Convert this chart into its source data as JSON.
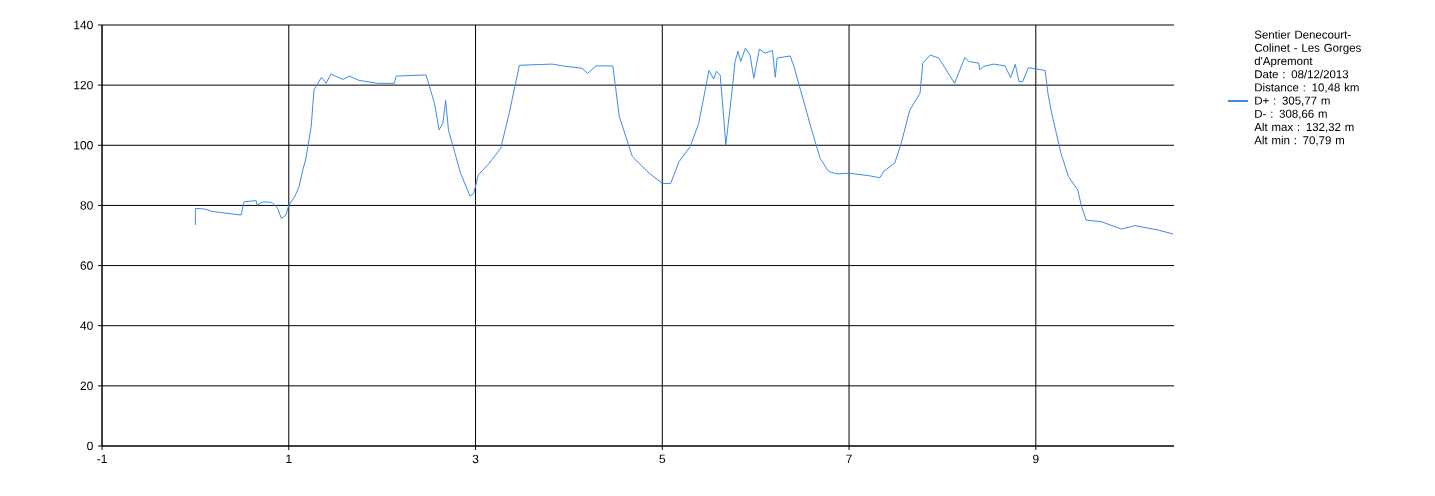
{
  "chart_data": {
    "type": "line",
    "xlim": [
      -1,
      10.48
    ],
    "ylim": [
      0,
      140
    ],
    "xticks": [
      -1,
      1,
      3,
      5,
      7,
      9
    ],
    "yticks": [
      0,
      20,
      40,
      60,
      80,
      100,
      120,
      140
    ],
    "grid": true,
    "legend": "right",
    "marker": "none",
    "line_style": "solid",
    "annotations": [
      "Date : 08/12/2013",
      "Distance : 10,48 km",
      "D+ : 305,77 m",
      "D- : 308,66 m",
      "Alt max : 132,32 m",
      "Alt min : 70,79 m"
    ],
    "series": [
      {
        "name": "Sentier Denecourt-Colinet - Les Gorges d'Apremont",
        "color": "#3c8ce6",
        "x": [
          0.0,
          0.0,
          0.1,
          0.18,
          0.49,
          0.52,
          0.65,
          0.66,
          0.72,
          0.82,
          0.88,
          0.92,
          0.97,
          1.0,
          1.06,
          1.11,
          1.15,
          1.18,
          1.24,
          1.27,
          1.35,
          1.4,
          1.45,
          1.58,
          1.65,
          1.75,
          1.95,
          2.13,
          2.15,
          2.47,
          2.56,
          2.61,
          2.65,
          2.68,
          2.71,
          2.84,
          2.94,
          2.98,
          3.03,
          3.07,
          3.14,
          3.27,
          3.36,
          3.47,
          3.82,
          3.93,
          4.14,
          4.2,
          4.29,
          4.47,
          4.54,
          4.68,
          4.86,
          5.0,
          5.09,
          5.18,
          5.3,
          5.39,
          5.5,
          5.55,
          5.58,
          5.62,
          5.66,
          5.68,
          5.74,
          5.78,
          5.81,
          5.84,
          5.89,
          5.94,
          5.98,
          6.04,
          6.1,
          6.18,
          6.21,
          6.23,
          6.37,
          6.41,
          6.6,
          6.69,
          6.78,
          6.87,
          7.0,
          7.21,
          7.33,
          7.37,
          7.49,
          7.56,
          7.65,
          7.76,
          7.79,
          7.87,
          7.96,
          8.03,
          8.13,
          8.24,
          8.28,
          8.39,
          8.4,
          8.44,
          8.55,
          8.67,
          8.73,
          8.78,
          8.82,
          8.86,
          8.92,
          9.1,
          9.13,
          9.17,
          9.27,
          9.35,
          9.45,
          9.49,
          9.54,
          9.7,
          9.92,
          10.06,
          10.31,
          10.47
        ],
        "values": [
          73.5,
          79,
          78.8,
          78,
          76.8,
          81.2,
          81.6,
          80.1,
          81.2,
          81,
          79.1,
          75.7,
          76.8,
          80.1,
          82.7,
          86.2,
          91.8,
          95.1,
          106.2,
          118.4,
          122.6,
          120.6,
          123.7,
          121.9,
          123,
          121.6,
          120.6,
          120.6,
          123,
          123.4,
          114,
          105.1,
          107.3,
          114.9,
          105.1,
          90.7,
          83.1,
          84,
          90.1,
          91.5,
          93.8,
          99,
          110.6,
          126.6,
          127,
          126.4,
          125.6,
          123.9,
          126.4,
          126.4,
          109.5,
          96.2,
          90.7,
          87.3,
          87.3,
          94.6,
          99.6,
          107.3,
          124.9,
          122,
          124.6,
          123.4,
          108.4,
          100.1,
          116.1,
          127.9,
          131.3,
          127.9,
          132.3,
          130,
          122.3,
          132,
          130.6,
          131.5,
          122.6,
          129,
          129.7,
          126.2,
          105.1,
          95.7,
          91.3,
          90.5,
          90.7,
          89.9,
          89.2,
          91.3,
          94.1,
          100.8,
          111.7,
          117.3,
          127.3,
          130,
          129,
          125.6,
          120.6,
          129.2,
          127.9,
          127.3,
          125.1,
          126.2,
          127,
          126.4,
          122.5,
          126.9,
          121.2,
          121.2,
          125.8,
          124.9,
          117.3,
          110.6,
          97.3,
          89.6,
          85.1,
          79.6,
          75.1,
          74.6,
          72.1,
          73.3,
          71.8,
          70.5
        ]
      }
    ]
  }
}
